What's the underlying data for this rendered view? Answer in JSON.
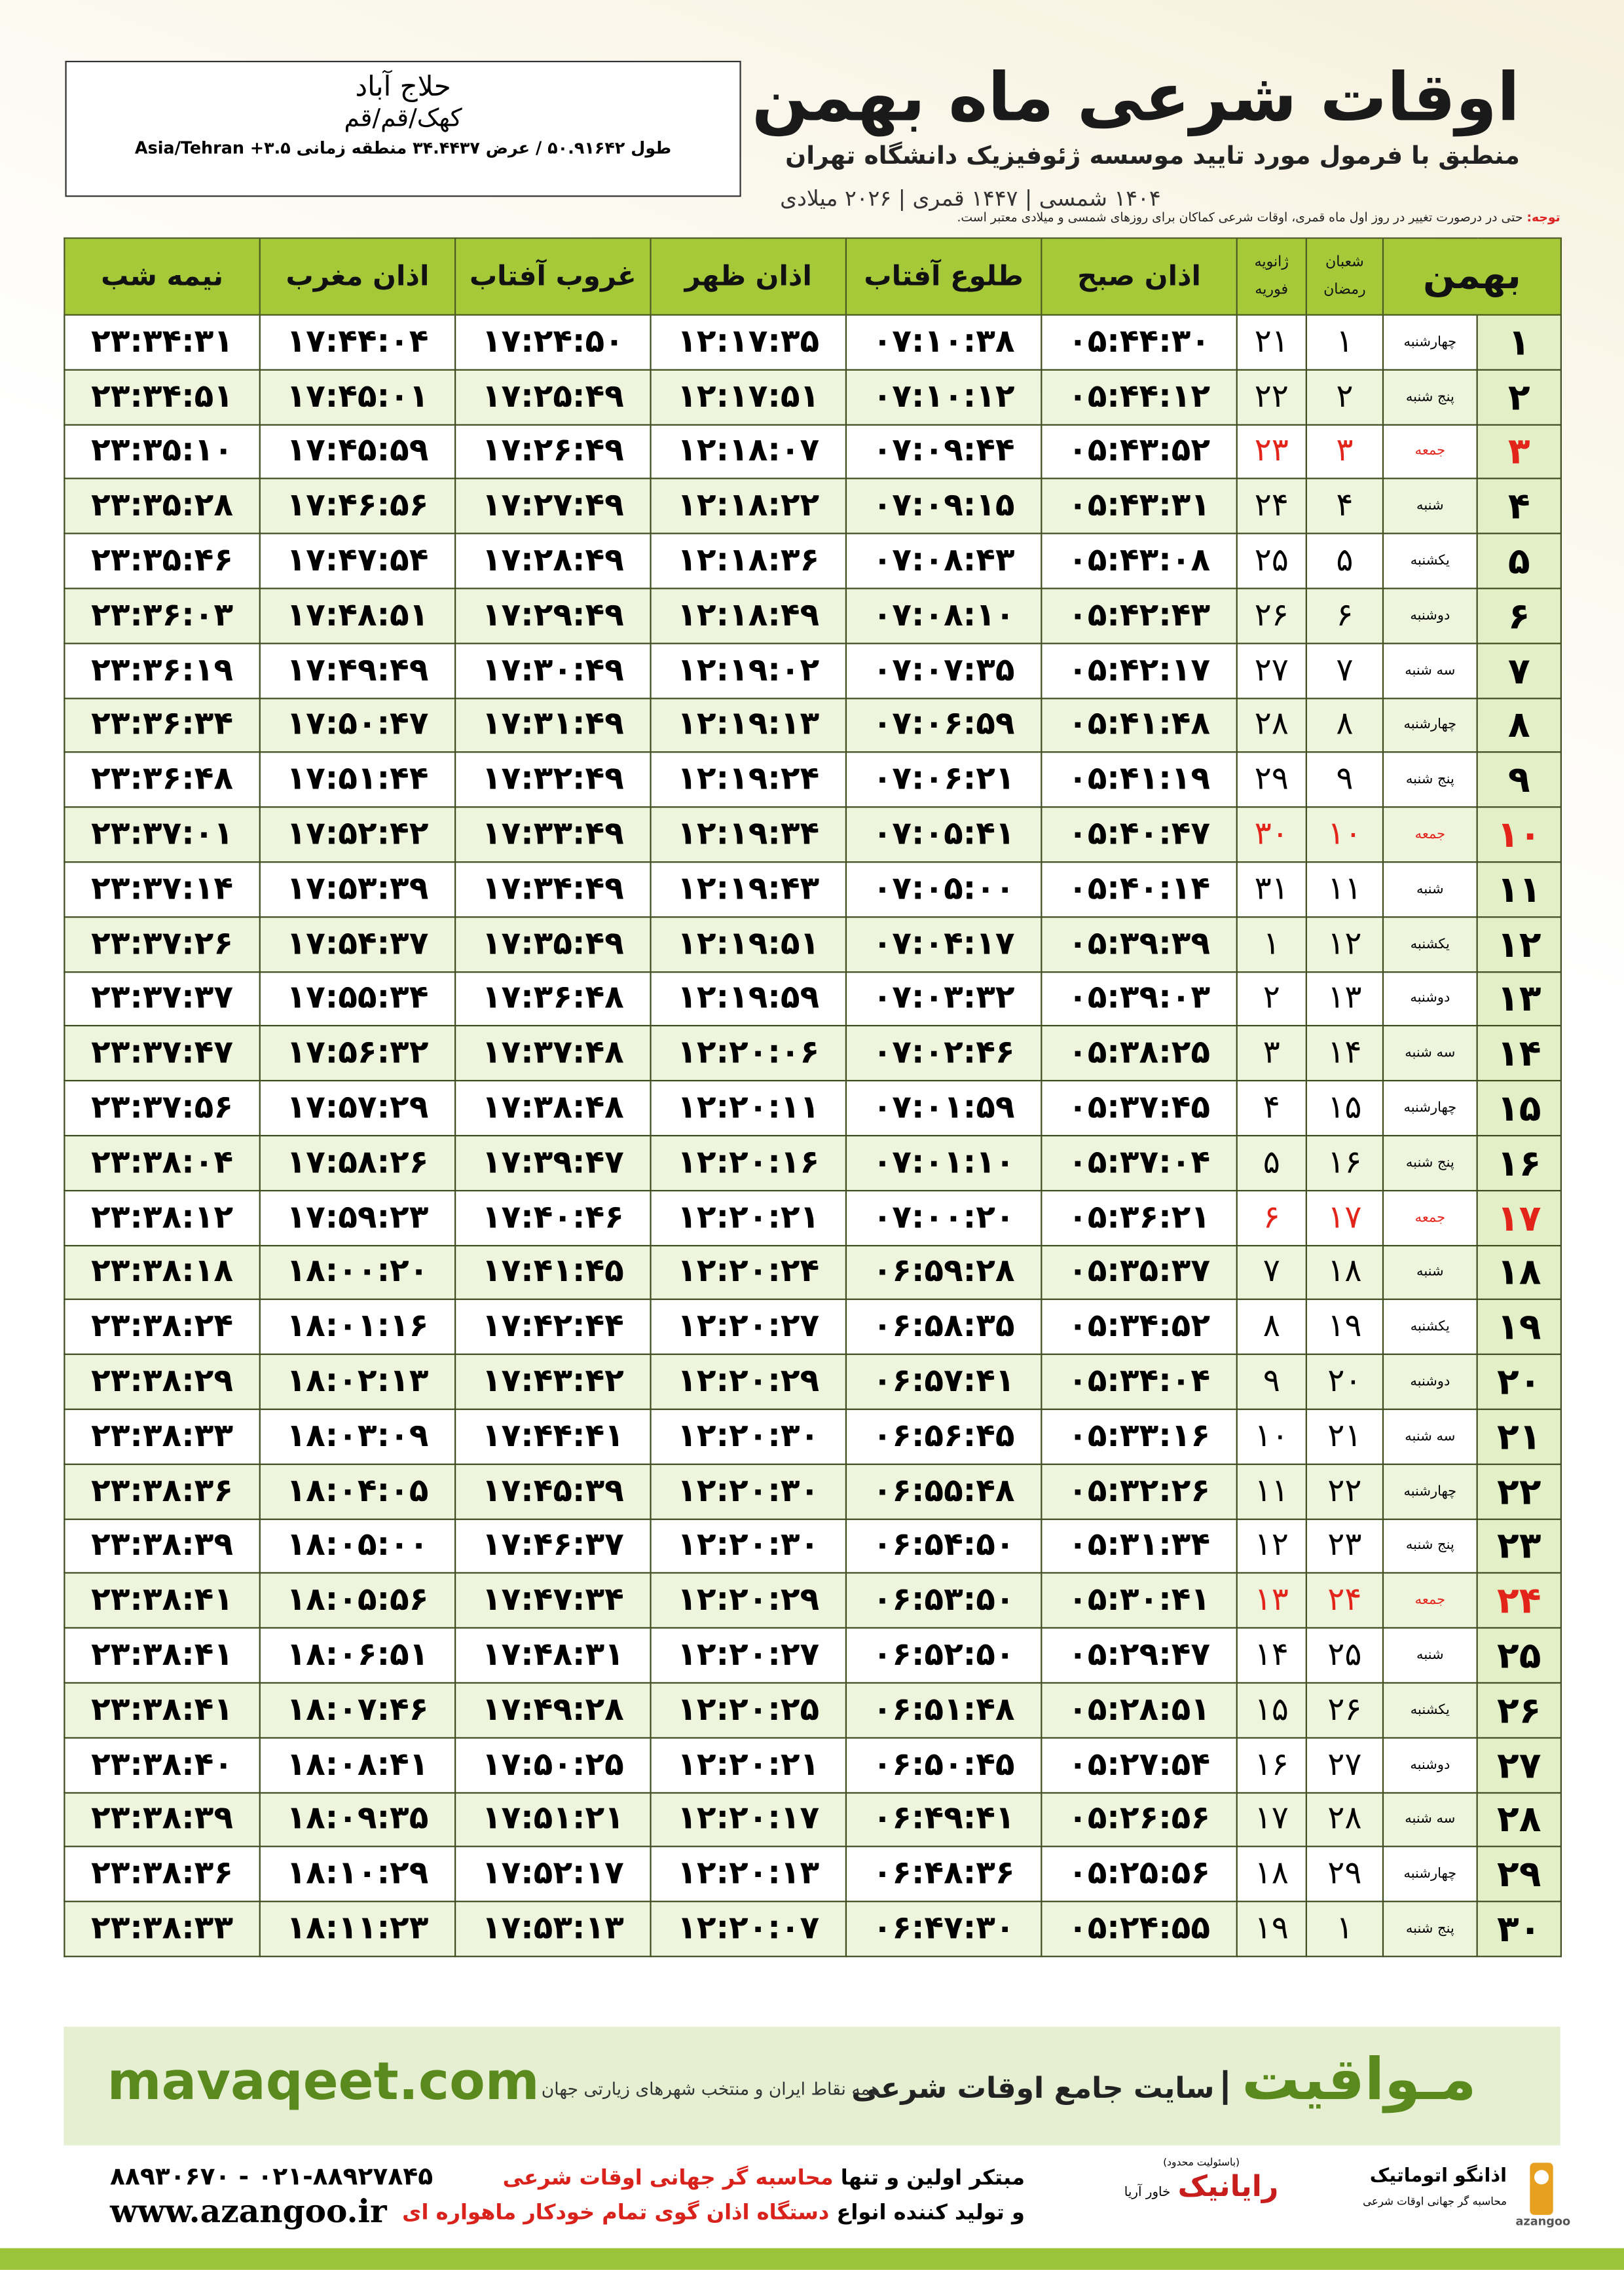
{
  "header": {
    "title": "اوقات شرعی ماه بهمن",
    "subtitle": "منطبق با فرمول مورد تایید موسسه ژئوفیزیک دانشگاه تهران",
    "dates": "۱۴۰۴ شمسی | ۱۴۴۷ قمری | ۲۰۲۶ میلادی"
  },
  "location": {
    "name": "حلاج آباد",
    "region": "کهک/قم/قم",
    "coords": "طول ۵۰.۹۱۶۴۲ / عرض ۳۴.۴۴۳۷ منطقه زمانی ۳.۵+ Asia/Tehran"
  },
  "note": {
    "label": "توجه:",
    "text": "حتی در درصورت تغییر در روز اول ماه قمری، اوقات شرعی کماکان برای روزهای شمسی و میلادی معتبر است."
  },
  "table": {
    "highlight_color": "#e3241b",
    "header": [
      "بهمن",
      [
        "شعبان",
        "رمضان"
      ],
      [
        "ژانویه",
        "فوریه"
      ],
      "اذان صبح",
      "طلوع آفتاب",
      "اذان ظهر",
      "غروب آفتاب",
      "اذان مغرب",
      "نیمه شب"
    ],
    "rows": [
      {
        "cells": [
          "۱",
          "چهارشنبه",
          "۱",
          "۲۱",
          "۰۵:۴۴:۳۰",
          "۰۷:۱۰:۳۸",
          "۱۲:۱۷:۳۵",
          "۱۷:۲۴:۵۰",
          "۱۷:۴۴:۰۴",
          "۲۳:۳۴:۳۱"
        ]
      },
      {
        "cells": [
          "۲",
          "پنج شنبه",
          "۲",
          "۲۲",
          "۰۵:۴۴:۱۲",
          "۰۷:۱۰:۱۲",
          "۱۲:۱۷:۵۱",
          "۱۷:۲۵:۴۹",
          "۱۷:۴۵:۰۱",
          "۲۳:۳۴:۵۱"
        ]
      },
      {
        "cells": [
          "۳",
          "جمعه",
          "۳",
          "۲۳",
          "۰۵:۴۳:۵۲",
          "۰۷:۰۹:۴۴",
          "۱۲:۱۸:۰۷",
          "۱۷:۲۶:۴۹",
          "۱۷:۴۵:۵۹",
          "۲۳:۳۵:۱۰"
        ],
        "highlight": true
      },
      {
        "cells": [
          "۴",
          "شنبه",
          "۴",
          "۲۴",
          "۰۵:۴۳:۳۱",
          "۰۷:۰۹:۱۵",
          "۱۲:۱۸:۲۲",
          "۱۷:۲۷:۴۹",
          "۱۷:۴۶:۵۶",
          "۲۳:۳۵:۲۸"
        ]
      },
      {
        "cells": [
          "۵",
          "یکشنبه",
          "۵",
          "۲۵",
          "۰۵:۴۳:۰۸",
          "۰۷:۰۸:۴۳",
          "۱۲:۱۸:۳۶",
          "۱۷:۲۸:۴۹",
          "۱۷:۴۷:۵۴",
          "۲۳:۳۵:۴۶"
        ]
      },
      {
        "cells": [
          "۶",
          "دوشنبه",
          "۶",
          "۲۶",
          "۰۵:۴۲:۴۳",
          "۰۷:۰۸:۱۰",
          "۱۲:۱۸:۴۹",
          "۱۷:۲۹:۴۹",
          "۱۷:۴۸:۵۱",
          "۲۳:۳۶:۰۳"
        ]
      },
      {
        "cells": [
          "۷",
          "سه شنبه",
          "۷",
          "۲۷",
          "۰۵:۴۲:۱۷",
          "۰۷:۰۷:۳۵",
          "۱۲:۱۹:۰۲",
          "۱۷:۳۰:۴۹",
          "۱۷:۴۹:۴۹",
          "۲۳:۳۶:۱۹"
        ]
      },
      {
        "cells": [
          "۸",
          "چهارشنبه",
          "۸",
          "۲۸",
          "۰۵:۴۱:۴۸",
          "۰۷:۰۶:۵۹",
          "۱۲:۱۹:۱۳",
          "۱۷:۳۱:۴۹",
          "۱۷:۵۰:۴۷",
          "۲۳:۳۶:۳۴"
        ]
      },
      {
        "cells": [
          "۹",
          "پنج شنبه",
          "۹",
          "۲۹",
          "۰۵:۴۱:۱۹",
          "۰۷:۰۶:۲۱",
          "۱۲:۱۹:۲۴",
          "۱۷:۳۲:۴۹",
          "۱۷:۵۱:۴۴",
          "۲۳:۳۶:۴۸"
        ]
      },
      {
        "cells": [
          "۱۰",
          "جمعه",
          "۱۰",
          "۳۰",
          "۰۵:۴۰:۴۷",
          "۰۷:۰۵:۴۱",
          "۱۲:۱۹:۳۴",
          "۱۷:۳۳:۴۹",
          "۱۷:۵۲:۴۲",
          "۲۳:۳۷:۰۱"
        ],
        "highlight": true
      },
      {
        "cells": [
          "۱۱",
          "شنبه",
          "۱۱",
          "۳۱",
          "۰۵:۴۰:۱۴",
          "۰۷:۰۵:۰۰",
          "۱۲:۱۹:۴۳",
          "۱۷:۳۴:۴۹",
          "۱۷:۵۳:۳۹",
          "۲۳:۳۷:۱۴"
        ]
      },
      {
        "cells": [
          "۱۲",
          "یکشنبه",
          "۱۲",
          "۱",
          "۰۵:۳۹:۳۹",
          "۰۷:۰۴:۱۷",
          "۱۲:۱۹:۵۱",
          "۱۷:۳۵:۴۹",
          "۱۷:۵۴:۳۷",
          "۲۳:۳۷:۲۶"
        ]
      },
      {
        "cells": [
          "۱۳",
          "دوشنبه",
          "۱۳",
          "۲",
          "۰۵:۳۹:۰۳",
          "۰۷:۰۳:۳۲",
          "۱۲:۱۹:۵۹",
          "۱۷:۳۶:۴۸",
          "۱۷:۵۵:۳۴",
          "۲۳:۳۷:۳۷"
        ]
      },
      {
        "cells": [
          "۱۴",
          "سه شنبه",
          "۱۴",
          "۳",
          "۰۵:۳۸:۲۵",
          "۰۷:۰۲:۴۶",
          "۱۲:۲۰:۰۶",
          "۱۷:۳۷:۴۸",
          "۱۷:۵۶:۳۲",
          "۲۳:۳۷:۴۷"
        ]
      },
      {
        "cells": [
          "۱۵",
          "چهارشنبه",
          "۱۵",
          "۴",
          "۰۵:۳۷:۴۵",
          "۰۷:۰۱:۵۹",
          "۱۲:۲۰:۱۱",
          "۱۷:۳۸:۴۸",
          "۱۷:۵۷:۲۹",
          "۲۳:۳۷:۵۶"
        ]
      },
      {
        "cells": [
          "۱۶",
          "پنج شنبه",
          "۱۶",
          "۵",
          "۰۵:۳۷:۰۴",
          "۰۷:۰۱:۱۰",
          "۱۲:۲۰:۱۶",
          "۱۷:۳۹:۴۷",
          "۱۷:۵۸:۲۶",
          "۲۳:۳۸:۰۴"
        ]
      },
      {
        "cells": [
          "۱۷",
          "جمعه",
          "۱۷",
          "۶",
          "۰۵:۳۶:۲۱",
          "۰۷:۰۰:۲۰",
          "۱۲:۲۰:۲۱",
          "۱۷:۴۰:۴۶",
          "۱۷:۵۹:۲۳",
          "۲۳:۳۸:۱۲"
        ],
        "highlight": true
      },
      {
        "cells": [
          "۱۸",
          "شنبه",
          "۱۸",
          "۷",
          "۰۵:۳۵:۳۷",
          "۰۶:۵۹:۲۸",
          "۱۲:۲۰:۲۴",
          "۱۷:۴۱:۴۵",
          "۱۸:۰۰:۲۰",
          "۲۳:۳۸:۱۸"
        ]
      },
      {
        "cells": [
          "۱۹",
          "یکشنبه",
          "۱۹",
          "۸",
          "۰۵:۳۴:۵۲",
          "۰۶:۵۸:۳۵",
          "۱۲:۲۰:۲۷",
          "۱۷:۴۲:۴۴",
          "۱۸:۰۱:۱۶",
          "۲۳:۳۸:۲۴"
        ]
      },
      {
        "cells": [
          "۲۰",
          "دوشنبه",
          "۲۰",
          "۹",
          "۰۵:۳۴:۰۴",
          "۰۶:۵۷:۴۱",
          "۱۲:۲۰:۲۹",
          "۱۷:۴۳:۴۲",
          "۱۸:۰۲:۱۳",
          "۲۳:۳۸:۲۹"
        ]
      },
      {
        "cells": [
          "۲۱",
          "سه شنبه",
          "۲۱",
          "۱۰",
          "۰۵:۳۳:۱۶",
          "۰۶:۵۶:۴۵",
          "۱۲:۲۰:۳۰",
          "۱۷:۴۴:۴۱",
          "۱۸:۰۳:۰۹",
          "۲۳:۳۸:۳۳"
        ]
      },
      {
        "cells": [
          "۲۲",
          "چهارشنبه",
          "۲۲",
          "۱۱",
          "۰۵:۳۲:۲۶",
          "۰۶:۵۵:۴۸",
          "۱۲:۲۰:۳۰",
          "۱۷:۴۵:۳۹",
          "۱۸:۰۴:۰۵",
          "۲۳:۳۸:۳۶"
        ]
      },
      {
        "cells": [
          "۲۳",
          "پنج شنبه",
          "۲۳",
          "۱۲",
          "۰۵:۳۱:۳۴",
          "۰۶:۵۴:۵۰",
          "۱۲:۲۰:۳۰",
          "۱۷:۴۶:۳۷",
          "۱۸:۰۵:۰۰",
          "۲۳:۳۸:۳۹"
        ]
      },
      {
        "cells": [
          "۲۴",
          "جمعه",
          "۲۴",
          "۱۳",
          "۰۵:۳۰:۴۱",
          "۰۶:۵۳:۵۰",
          "۱۲:۲۰:۲۹",
          "۱۷:۴۷:۳۴",
          "۱۸:۰۵:۵۶",
          "۲۳:۳۸:۴۱"
        ],
        "highlight": true
      },
      {
        "cells": [
          "۲۵",
          "شنبه",
          "۲۵",
          "۱۴",
          "۰۵:۲۹:۴۷",
          "۰۶:۵۲:۵۰",
          "۱۲:۲۰:۲۷",
          "۱۷:۴۸:۳۱",
          "۱۸:۰۶:۵۱",
          "۲۳:۳۸:۴۱"
        ]
      },
      {
        "cells": [
          "۲۶",
          "یکشنبه",
          "۲۶",
          "۱۵",
          "۰۵:۲۸:۵۱",
          "۰۶:۵۱:۴۸",
          "۱۲:۲۰:۲۵",
          "۱۷:۴۹:۲۸",
          "۱۸:۰۷:۴۶",
          "۲۳:۳۸:۴۱"
        ]
      },
      {
        "cells": [
          "۲۷",
          "دوشنبه",
          "۲۷",
          "۱۶",
          "۰۵:۲۷:۵۴",
          "۰۶:۵۰:۴۵",
          "۱۲:۲۰:۲۱",
          "۱۷:۵۰:۲۵",
          "۱۸:۰۸:۴۱",
          "۲۳:۳۸:۴۰"
        ]
      },
      {
        "cells": [
          "۲۸",
          "سه شنبه",
          "۲۸",
          "۱۷",
          "۰۵:۲۶:۵۶",
          "۰۶:۴۹:۴۱",
          "۱۲:۲۰:۱۷",
          "۱۷:۵۱:۲۱",
          "۱۸:۰۹:۳۵",
          "۲۳:۳۸:۳۹"
        ]
      },
      {
        "cells": [
          "۲۹",
          "چهارشنبه",
          "۲۹",
          "۱۸",
          "۰۵:۲۵:۵۶",
          "۰۶:۴۸:۳۶",
          "۱۲:۲۰:۱۳",
          "۱۷:۵۲:۱۷",
          "۱۸:۱۰:۲۹",
          "۲۳:۳۸:۳۶"
        ]
      },
      {
        "cells": [
          "۳۰",
          "پنج شنبه",
          "۱",
          "۱۹",
          "۰۵:۲۴:۵۵",
          "۰۶:۴۷:۳۰",
          "۱۲:۲۰:۰۷",
          "۱۷:۵۳:۱۳",
          "۱۸:۱۱:۲۳",
          "۲۳:۳۸:۳۳"
        ]
      }
    ]
  },
  "banner": {
    "brand": "مـواقیت",
    "tagline": "سایت جامع اوقات شرعی",
    "scope": "همه نقاط ایران و منتخب شهرهای زیارتی جهان",
    "url": "mavaqeet.com"
  },
  "footer": {
    "line1_a": "مبتکر اولین و تنها",
    "line1_b": "محاسبه گر جهانی اوقات شرعی",
    "line2_a": "و تولید کننده انواع",
    "line2_b": "دستگاه اذان گوی تمام خودکار ماهواره ای",
    "phone": "۰۲۱-۸۸۹۲۷۸۴۵ - ۸۸۹۳۰۶۷۰",
    "website": "www.azangoo.ir",
    "logo1_note": "(باسئولیت محدود)",
    "logo1": "رایانیک",
    "logo1_sub": "خاور آریا",
    "logo2": "اذانگو اتوماتیک",
    "logo2_sub": "محاسبه گر جهانی اوقات شرعی",
    "logo2_en": "azangoo"
  }
}
